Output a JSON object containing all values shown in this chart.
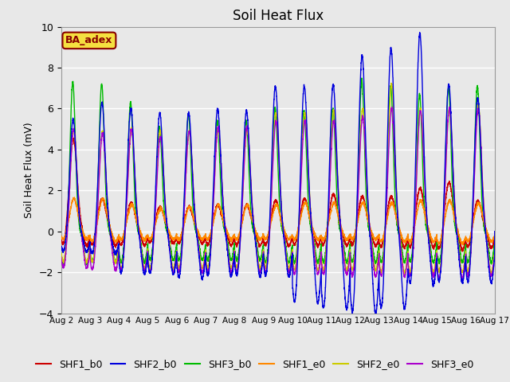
{
  "title": "Soil Heat Flux",
  "ylabel": "Soil Heat Flux (mV)",
  "xlim_start": 0,
  "xlim_end": 15,
  "ylim": [
    -4,
    10
  ],
  "yticks": [
    -4,
    -2,
    0,
    2,
    4,
    6,
    8,
    10
  ],
  "xtick_labels": [
    "Aug 2",
    "Aug 3",
    "Aug 4",
    "Aug 5",
    "Aug 6",
    "Aug 7",
    "Aug 8",
    "Aug 9",
    "Aug 10",
    "Aug 11",
    "Aug 12",
    "Aug 13",
    "Aug 14",
    "Aug 15",
    "Aug 16",
    "Aug 17"
  ],
  "annotation_text": "BA_adex",
  "annotation_box_color": "#f5e040",
  "annotation_text_color": "#880000",
  "lines": {
    "SHF1_b0": {
      "color": "#cc0000"
    },
    "SHF2_b0": {
      "color": "#0000dd"
    },
    "SHF3_b0": {
      "color": "#00bb00"
    },
    "SHF1_e0": {
      "color": "#ff8800"
    },
    "SHF2_e0": {
      "color": "#cccc00"
    },
    "SHF3_e0": {
      "color": "#aa00cc"
    }
  },
  "bg_color": "#e8e8e8",
  "grid_color": "#ffffff",
  "title_fontsize": 12,
  "legend_fontsize": 9,
  "n_days": 15,
  "points_per_day": 288,
  "shf2_b0_peaks": [
    5.5,
    6.3,
    6.0,
    5.8,
    5.8,
    6.0,
    5.9,
    7.1,
    7.1,
    7.2,
    8.6,
    9.0,
    9.7,
    7.2,
    6.5
  ],
  "shf2_b0_troughs": [
    -1.0,
    -1.1,
    -2.1,
    -2.1,
    -2.3,
    -2.2,
    -2.2,
    -2.2,
    -3.5,
    -3.8,
    -4.0,
    -3.8,
    -2.6,
    -2.5,
    -2.5
  ],
  "shf1_b0_peaks": [
    4.5,
    1.6,
    1.4,
    1.2,
    1.2,
    1.3,
    1.3,
    1.5,
    1.6,
    1.8,
    1.7,
    1.7,
    2.1,
    2.4,
    1.5
  ],
  "shf1_b0_troughs": [
    -0.7,
    -0.7,
    -0.7,
    -0.6,
    -0.6,
    -0.7,
    -0.7,
    -0.7,
    -0.7,
    -0.7,
    -0.7,
    -0.8,
    -0.8,
    -0.9,
    -0.8
  ],
  "shf3_b0_peaks": [
    7.3,
    7.2,
    6.3,
    5.1,
    5.7,
    5.4,
    5.4,
    6.0,
    5.9,
    6.0,
    7.4,
    7.1,
    6.7,
    7.0,
    7.1
  ],
  "shf3_b0_troughs": [
    -1.6,
    -1.5,
    -1.5,
    -1.4,
    -1.4,
    -1.4,
    -1.4,
    -1.5,
    -1.5,
    -1.5,
    -1.5,
    -1.5,
    -1.5,
    -1.5,
    -1.5
  ],
  "shf1_e0_peaks": [
    1.6,
    1.6,
    1.3,
    1.1,
    1.2,
    1.3,
    1.3,
    1.3,
    1.4,
    1.4,
    1.4,
    1.4,
    1.5,
    1.5,
    1.4
  ],
  "shf1_e0_troughs": [
    -0.4,
    -0.5,
    -0.4,
    -0.4,
    -0.4,
    -0.4,
    -0.4,
    -0.4,
    -0.4,
    -0.4,
    -0.4,
    -0.5,
    -0.5,
    -0.6,
    -0.5
  ],
  "shf2_e0_peaks": [
    5.0,
    4.9,
    5.0,
    4.9,
    4.9,
    5.0,
    5.0,
    5.8,
    5.8,
    5.9,
    6.0,
    7.2,
    6.0,
    6.0,
    6.2
  ],
  "shf2_e0_troughs": [
    -1.5,
    -1.5,
    -1.8,
    -1.8,
    -1.8,
    -1.8,
    -1.8,
    -1.8,
    -1.9,
    -1.9,
    -1.9,
    -2.0,
    -2.0,
    -2.0,
    -2.0
  ],
  "shf3_e0_peaks": [
    5.0,
    4.8,
    5.0,
    4.6,
    4.9,
    5.1,
    5.1,
    5.4,
    5.4,
    5.4,
    5.6,
    6.0,
    5.9,
    6.0,
    6.0
  ],
  "shf3_e0_troughs": [
    -1.8,
    -1.9,
    -1.9,
    -2.0,
    -2.0,
    -2.0,
    -2.0,
    -2.0,
    -2.1,
    -2.1,
    -2.2,
    -2.2,
    -2.2,
    -2.3,
    -2.2
  ]
}
